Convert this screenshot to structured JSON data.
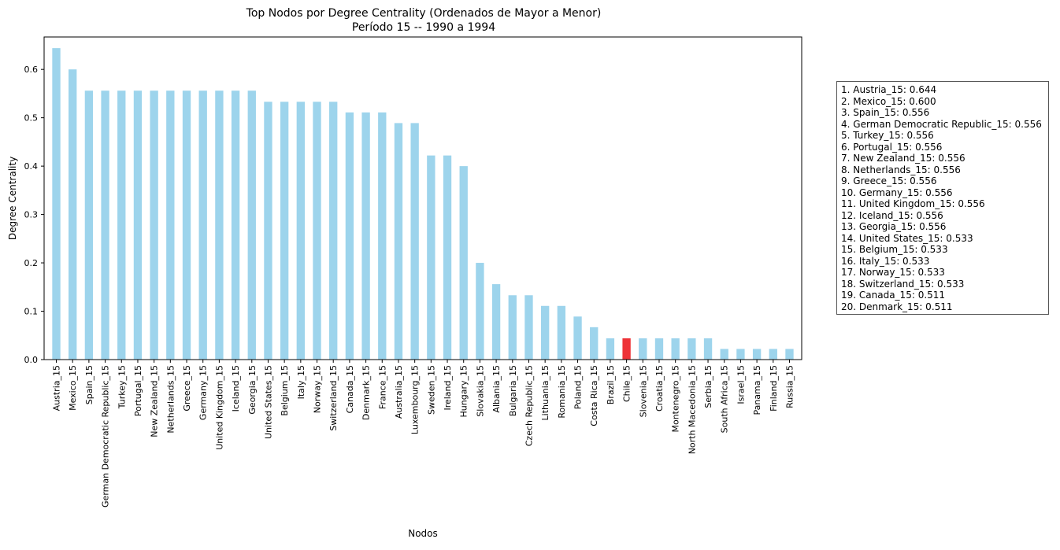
{
  "chart_data": {
    "type": "bar",
    "title": "Top Nodos por Degree Centrality (Ordenados de Mayor a Menor)",
    "subtitle": "Período 15 -- 1990 a 1994",
    "xlabel": "Nodos",
    "ylabel": "Degree Centrality",
    "ylim": [
      0,
      0.667
    ],
    "yticks": [
      "0.0",
      "0.1",
      "0.2",
      "0.3",
      "0.4",
      "0.5",
      "0.6"
    ],
    "grid": false,
    "bar_color": "#9dd4ec",
    "highlight_color": "#ee3237",
    "highlight_category": "Chile_15",
    "categories": [
      "Austria_15",
      "Mexico_15",
      "Spain_15",
      "German Democratic Republic_15",
      "Turkey_15",
      "Portugal_15",
      "New Zealand_15",
      "Netherlands_15",
      "Greece_15",
      "Germany_15",
      "United Kingdom_15",
      "Iceland_15",
      "Georgia_15",
      "United States_15",
      "Belgium_15",
      "Italy_15",
      "Norway_15",
      "Switzerland_15",
      "Canada_15",
      "Denmark_15",
      "France_15",
      "Australia_15",
      "Luxembourg_15",
      "Sweden_15",
      "Ireland_15",
      "Hungary_15",
      "Slovakia_15",
      "Albania_15",
      "Bulgaria_15",
      "Czech Republic_15",
      "Lithuania_15",
      "Romania_15",
      "Poland_15",
      "Costa Rica_15",
      "Brazil_15",
      "Chile_15",
      "Slovenia_15",
      "Croatia_15",
      "Montenegro_15",
      "North Macedonia_15",
      "Serbia_15",
      "South Africa_15",
      "Israel_15",
      "Panama_15",
      "Finland_15",
      "Russia_15"
    ],
    "values": [
      0.644,
      0.6,
      0.556,
      0.556,
      0.556,
      0.556,
      0.556,
      0.556,
      0.556,
      0.556,
      0.556,
      0.556,
      0.556,
      0.533,
      0.533,
      0.533,
      0.533,
      0.533,
      0.511,
      0.511,
      0.511,
      0.489,
      0.489,
      0.422,
      0.422,
      0.4,
      0.2,
      0.156,
      0.133,
      0.133,
      0.111,
      0.111,
      0.089,
      0.067,
      0.044,
      0.044,
      0.044,
      0.044,
      0.044,
      0.044,
      0.044,
      0.022,
      0.022,
      0.022,
      0.022,
      0.022
    ],
    "legend": {
      "placement": "right",
      "entries": [
        "1. Austria_15: 0.644",
        "2. Mexico_15: 0.600",
        "3. Spain_15: 0.556",
        "4. German Democratic Republic_15: 0.556",
        "5. Turkey_15: 0.556",
        "6. Portugal_15: 0.556",
        "7. New Zealand_15: 0.556",
        "8. Netherlands_15: 0.556",
        "9. Greece_15: 0.556",
        "10. Germany_15: 0.556",
        "11. United Kingdom_15: 0.556",
        "12. Iceland_15: 0.556",
        "13. Georgia_15: 0.556",
        "14. United States_15: 0.533",
        "15. Belgium_15: 0.533",
        "16. Italy_15: 0.533",
        "17. Norway_15: 0.533",
        "18. Switzerland_15: 0.533",
        "19. Canada_15: 0.511",
        "20. Denmark_15: 0.511"
      ]
    }
  }
}
